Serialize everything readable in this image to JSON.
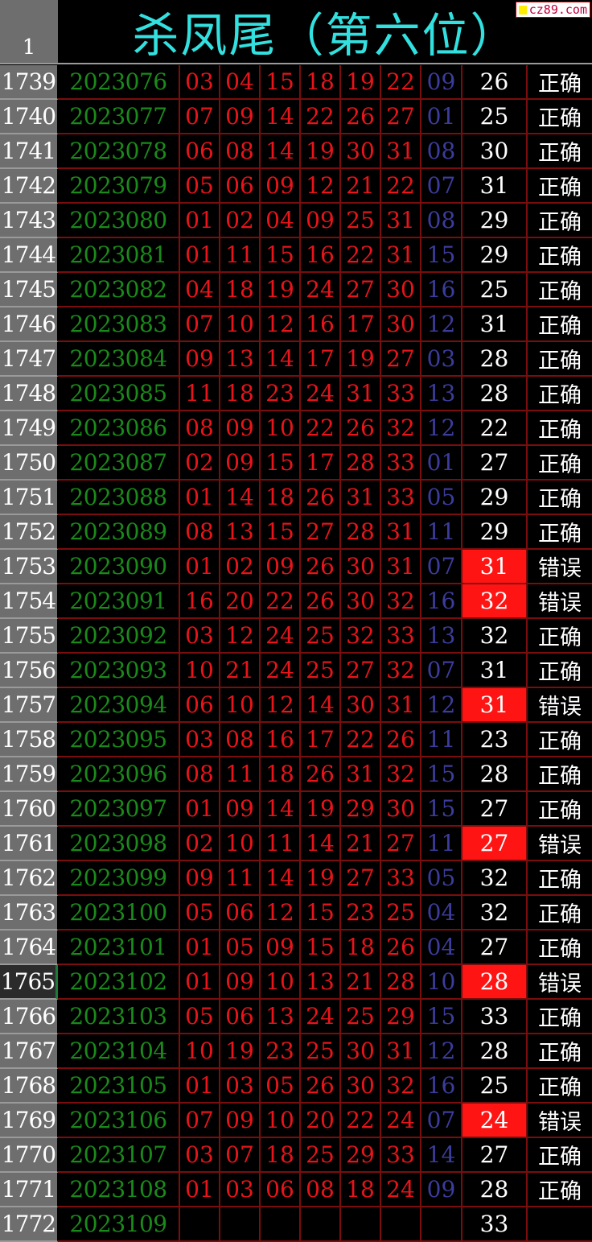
{
  "header": {
    "row_number": "1",
    "title": "杀凤尾（第六位）"
  },
  "watermark": "cz89.com",
  "colors": {
    "title": "#33e0e0",
    "issue": "#1a8a1a",
    "red_ball": "#e8141a",
    "blue_ball": "#3c3c9c",
    "error_fill": "#ff1414",
    "grid": "#7a0d0d"
  },
  "selected_row": "1765",
  "rows": [
    {
      "n": "1739",
      "issue": "2023076",
      "reds": [
        "03",
        "04",
        "15",
        "18",
        "19",
        "22"
      ],
      "blue": "09",
      "value": "26",
      "result": "正确",
      "error": false
    },
    {
      "n": "1740",
      "issue": "2023077",
      "reds": [
        "07",
        "09",
        "14",
        "22",
        "26",
        "27"
      ],
      "blue": "01",
      "value": "25",
      "result": "正确",
      "error": false
    },
    {
      "n": "1741",
      "issue": "2023078",
      "reds": [
        "06",
        "08",
        "14",
        "19",
        "30",
        "31"
      ],
      "blue": "08",
      "value": "30",
      "result": "正确",
      "error": false
    },
    {
      "n": "1742",
      "issue": "2023079",
      "reds": [
        "05",
        "06",
        "09",
        "12",
        "21",
        "22"
      ],
      "blue": "07",
      "value": "31",
      "result": "正确",
      "error": false
    },
    {
      "n": "1743",
      "issue": "2023080",
      "reds": [
        "01",
        "02",
        "04",
        "09",
        "25",
        "31"
      ],
      "blue": "08",
      "value": "29",
      "result": "正确",
      "error": false
    },
    {
      "n": "1744",
      "issue": "2023081",
      "reds": [
        "01",
        "11",
        "15",
        "16",
        "22",
        "31"
      ],
      "blue": "15",
      "value": "29",
      "result": "正确",
      "error": false
    },
    {
      "n": "1745",
      "issue": "2023082",
      "reds": [
        "04",
        "18",
        "19",
        "24",
        "27",
        "30"
      ],
      "blue": "16",
      "value": "25",
      "result": "正确",
      "error": false
    },
    {
      "n": "1746",
      "issue": "2023083",
      "reds": [
        "07",
        "10",
        "12",
        "16",
        "17",
        "30"
      ],
      "blue": "12",
      "value": "31",
      "result": "正确",
      "error": false
    },
    {
      "n": "1747",
      "issue": "2023084",
      "reds": [
        "09",
        "13",
        "14",
        "17",
        "19",
        "27"
      ],
      "blue": "03",
      "value": "28",
      "result": "正确",
      "error": false
    },
    {
      "n": "1748",
      "issue": "2023085",
      "reds": [
        "11",
        "18",
        "23",
        "24",
        "31",
        "33"
      ],
      "blue": "13",
      "value": "28",
      "result": "正确",
      "error": false
    },
    {
      "n": "1749",
      "issue": "2023086",
      "reds": [
        "08",
        "09",
        "10",
        "22",
        "26",
        "32"
      ],
      "blue": "12",
      "value": "22",
      "result": "正确",
      "error": false
    },
    {
      "n": "1750",
      "issue": "2023087",
      "reds": [
        "02",
        "09",
        "15",
        "17",
        "28",
        "33"
      ],
      "blue": "01",
      "value": "27",
      "result": "正确",
      "error": false
    },
    {
      "n": "1751",
      "issue": "2023088",
      "reds": [
        "01",
        "14",
        "18",
        "26",
        "31",
        "33"
      ],
      "blue": "05",
      "value": "29",
      "result": "正确",
      "error": false
    },
    {
      "n": "1752",
      "issue": "2023089",
      "reds": [
        "08",
        "13",
        "15",
        "27",
        "28",
        "31"
      ],
      "blue": "11",
      "value": "29",
      "result": "正确",
      "error": false
    },
    {
      "n": "1753",
      "issue": "2023090",
      "reds": [
        "01",
        "02",
        "09",
        "26",
        "30",
        "31"
      ],
      "blue": "07",
      "value": "31",
      "result": "错误",
      "error": true
    },
    {
      "n": "1754",
      "issue": "2023091",
      "reds": [
        "16",
        "20",
        "22",
        "26",
        "30",
        "32"
      ],
      "blue": "16",
      "value": "32",
      "result": "错误",
      "error": true
    },
    {
      "n": "1755",
      "issue": "2023092",
      "reds": [
        "03",
        "12",
        "24",
        "25",
        "32",
        "33"
      ],
      "blue": "13",
      "value": "32",
      "result": "正确",
      "error": false
    },
    {
      "n": "1756",
      "issue": "2023093",
      "reds": [
        "10",
        "21",
        "24",
        "25",
        "27",
        "32"
      ],
      "blue": "07",
      "value": "31",
      "result": "正确",
      "error": false
    },
    {
      "n": "1757",
      "issue": "2023094",
      "reds": [
        "06",
        "10",
        "12",
        "14",
        "30",
        "31"
      ],
      "blue": "12",
      "value": "31",
      "result": "错误",
      "error": true
    },
    {
      "n": "1758",
      "issue": "2023095",
      "reds": [
        "03",
        "08",
        "16",
        "17",
        "22",
        "26"
      ],
      "blue": "11",
      "value": "23",
      "result": "正确",
      "error": false
    },
    {
      "n": "1759",
      "issue": "2023096",
      "reds": [
        "08",
        "11",
        "18",
        "26",
        "31",
        "32"
      ],
      "blue": "15",
      "value": "28",
      "result": "正确",
      "error": false
    },
    {
      "n": "1760",
      "issue": "2023097",
      "reds": [
        "01",
        "09",
        "14",
        "19",
        "29",
        "30"
      ],
      "blue": "15",
      "value": "27",
      "result": "正确",
      "error": false
    },
    {
      "n": "1761",
      "issue": "2023098",
      "reds": [
        "02",
        "10",
        "11",
        "14",
        "21",
        "27"
      ],
      "blue": "11",
      "value": "27",
      "result": "错误",
      "error": true
    },
    {
      "n": "1762",
      "issue": "2023099",
      "reds": [
        "09",
        "11",
        "14",
        "19",
        "27",
        "33"
      ],
      "blue": "05",
      "value": "32",
      "result": "正确",
      "error": false
    },
    {
      "n": "1763",
      "issue": "2023100",
      "reds": [
        "05",
        "06",
        "12",
        "15",
        "23",
        "25"
      ],
      "blue": "04",
      "value": "32",
      "result": "正确",
      "error": false
    },
    {
      "n": "1764",
      "issue": "2023101",
      "reds": [
        "01",
        "05",
        "09",
        "15",
        "18",
        "26"
      ],
      "blue": "04",
      "value": "27",
      "result": "正确",
      "error": false
    },
    {
      "n": "1765",
      "issue": "2023102",
      "reds": [
        "01",
        "09",
        "10",
        "13",
        "21",
        "28"
      ],
      "blue": "10",
      "value": "28",
      "result": "错误",
      "error": true
    },
    {
      "n": "1766",
      "issue": "2023103",
      "reds": [
        "05",
        "06",
        "13",
        "24",
        "25",
        "29"
      ],
      "blue": "15",
      "value": "33",
      "result": "正确",
      "error": false
    },
    {
      "n": "1767",
      "issue": "2023104",
      "reds": [
        "10",
        "19",
        "23",
        "25",
        "30",
        "31"
      ],
      "blue": "12",
      "value": "28",
      "result": "正确",
      "error": false
    },
    {
      "n": "1768",
      "issue": "2023105",
      "reds": [
        "01",
        "03",
        "05",
        "26",
        "30",
        "32"
      ],
      "blue": "16",
      "value": "25",
      "result": "正确",
      "error": false
    },
    {
      "n": "1769",
      "issue": "2023106",
      "reds": [
        "07",
        "09",
        "10",
        "20",
        "22",
        "24"
      ],
      "blue": "07",
      "value": "24",
      "result": "错误",
      "error": true
    },
    {
      "n": "1770",
      "issue": "2023107",
      "reds": [
        "03",
        "07",
        "18",
        "25",
        "29",
        "33"
      ],
      "blue": "14",
      "value": "27",
      "result": "正确",
      "error": false
    },
    {
      "n": "1771",
      "issue": "2023108",
      "reds": [
        "01",
        "03",
        "06",
        "08",
        "18",
        "24"
      ],
      "blue": "09",
      "value": "28",
      "result": "正确",
      "error": false
    },
    {
      "n": "1772",
      "issue": "2023109",
      "reds": [
        "",
        "",
        "",
        "",
        "",
        ""
      ],
      "blue": "",
      "value": "33",
      "result": "",
      "error": false
    }
  ]
}
